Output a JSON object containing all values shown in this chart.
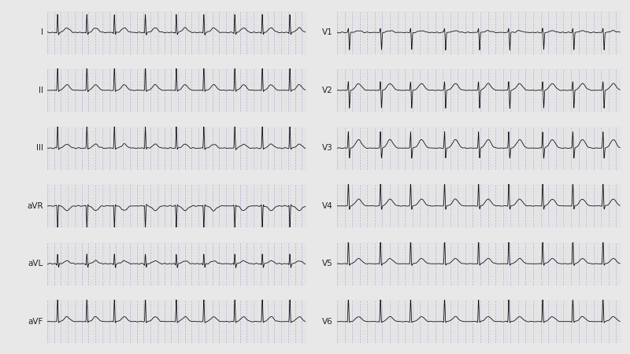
{
  "bg_color": "#e8e8e8",
  "grid_color": "#aaaacc",
  "signal_color": "#111111",
  "label_color": "#222222",
  "fig_width": 8.0,
  "fig_height": 4.5,
  "dpi": 100,
  "leads_left": [
    "I",
    "II",
    "III",
    "aVR",
    "aVL",
    "aVF"
  ],
  "leads_right": [
    "V1",
    "V2",
    "V3",
    "V4",
    "V5",
    "V6"
  ],
  "sample_rate": 500,
  "duration": 7.5,
  "beat_times": [
    0.3,
    1.15,
    1.95,
    2.85,
    3.75,
    4.55,
    5.45,
    6.25,
    7.05
  ],
  "lead_params": {
    "I": {
      "q": -0.05,
      "r": 0.55,
      "s": -0.08,
      "t": 0.14,
      "noise": 0.008
    },
    "II": {
      "q": -0.04,
      "r": 0.9,
      "s": -0.06,
      "t": 0.2,
      "noise": 0.006
    },
    "III": {
      "q": -0.02,
      "r": 0.55,
      "s": -0.04,
      "t": 0.1,
      "noise": 0.006
    },
    "aVR": {
      "q": 0.04,
      "r": -0.55,
      "s": 0.04,
      "t": -0.12,
      "noise": 0.006
    },
    "aVL": {
      "q": -0.04,
      "r": 0.2,
      "s": -0.08,
      "t": 0.06,
      "noise": 0.006
    },
    "aVF": {
      "q": -0.03,
      "r": 0.8,
      "s": -0.05,
      "t": 0.16,
      "noise": 0.006
    },
    "V1": {
      "q": 0.0,
      "r": 0.1,
      "s": -0.4,
      "t": 0.04,
      "noise": 0.005
    },
    "V2": {
      "q": 0.0,
      "r": 0.3,
      "s": -0.6,
      "t": 0.22,
      "noise": 0.005
    },
    "V3": {
      "q": 0.0,
      "r": 0.55,
      "s": -0.35,
      "t": 0.28,
      "noise": 0.005
    },
    "V4": {
      "q": -0.03,
      "r": 0.9,
      "s": -0.15,
      "t": 0.26,
      "noise": 0.005
    },
    "V5": {
      "q": -0.05,
      "r": 0.95,
      "s": -0.08,
      "t": 0.2,
      "noise": 0.005
    },
    "V6": {
      "q": -0.05,
      "r": 0.7,
      "s": -0.04,
      "t": 0.15,
      "noise": 0.005
    }
  }
}
